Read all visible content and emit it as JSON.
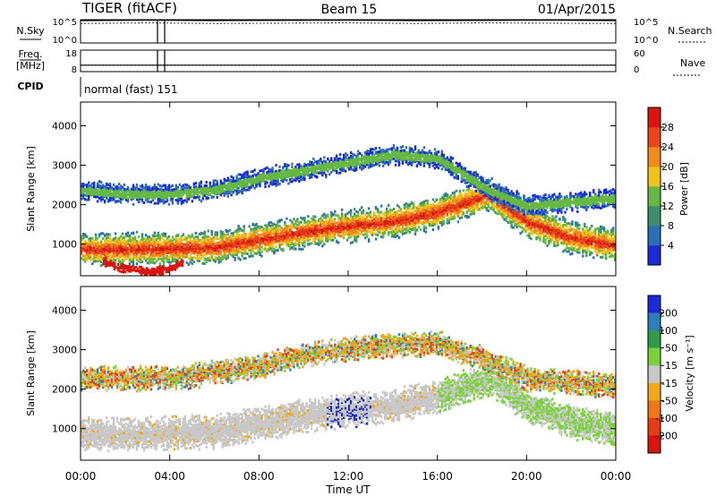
{
  "header": {
    "radar": "TIGER (fitACF)",
    "beam": "Beam 15",
    "date": "01/Apr/2015"
  },
  "chart_data": [
    {
      "type": "line",
      "panel": "noise",
      "left_label": "N.Sky",
      "right_label": "N.Search",
      "left_ticks": [
        "10^5",
        "10^0"
      ],
      "right_ticks": [
        "10^5",
        "10^0"
      ],
      "ylim_log10": [
        0,
        5
      ],
      "series": [
        {
          "name": "N.Sky",
          "values": [
            4.8,
            4.9,
            4.8,
            4.85,
            4.9,
            4.8,
            4.85,
            4.9,
            4.8
          ]
        },
        {
          "name": "N.Search",
          "values": [
            4.2,
            4.3,
            4.2,
            4.25,
            4.3,
            4.2,
            4.3,
            4.25,
            4.2
          ]
        }
      ]
    },
    {
      "type": "line",
      "panel": "frequency",
      "left_label_top": "Freq.",
      "left_label_bottom": "[MHz]",
      "right_label": "Nave",
      "left_ticks": [
        "18",
        "8"
      ],
      "right_ticks": [
        "60",
        "0"
      ],
      "ylim": [
        8,
        18
      ],
      "series": [
        {
          "name": "Freq.",
          "values": [
            11,
            11,
            11,
            11,
            11,
            11,
            11,
            11,
            11
          ]
        },
        {
          "name": "Nave",
          "values": [
            18,
            18,
            18,
            18,
            18,
            18,
            18,
            18,
            18
          ]
        }
      ]
    },
    {
      "type": "table",
      "panel": "cpid",
      "label": "CPID",
      "text": "normal (fast) 151"
    },
    {
      "type": "heatmap",
      "panel": "power",
      "ylabel": "Slant Range [km]",
      "yticks": [
        1000,
        2000,
        3000,
        4000
      ],
      "ylim": [
        200,
        4600
      ],
      "xlim_hours": [
        0,
        24
      ],
      "colorbar": {
        "label": "Power [dB]",
        "ticks": [
          "4",
          "8",
          "12",
          "16",
          "20",
          "24",
          "28"
        ],
        "colors": [
          "#1c2ad6",
          "#2a6fb5",
          "#3f8f6e",
          "#66b844",
          "#f2c21a",
          "#f08a1a",
          "#e8451a",
          "#d8160e"
        ]
      },
      "bands": [
        {
          "role": "main_echo",
          "t": [
            0,
            2,
            4,
            6,
            8,
            10,
            12,
            14,
            16,
            18.3,
            20,
            22,
            24
          ],
          "range": [
            900,
            900,
            920,
            950,
            1150,
            1350,
            1500,
            1600,
            1850,
            2300,
            1600,
            1200,
            1000
          ],
          "width": 420
        },
        {
          "role": "upper_echo",
          "t": [
            0,
            2,
            4,
            6,
            8,
            10,
            12,
            14,
            16,
            18.3,
            20,
            22,
            24
          ],
          "range": [
            2400,
            2300,
            2300,
            2400,
            2700,
            2900,
            3100,
            3300,
            3200,
            2400,
            2000,
            2100,
            2200
          ],
          "width": 250
        },
        {
          "role": "low_loop",
          "t": [
            1.0,
            1.7,
            2.4,
            3.2,
            4.0,
            4.6
          ],
          "range": [
            600,
            420,
            380,
            330,
            420,
            580
          ],
          "width": 80
        }
      ]
    },
    {
      "type": "heatmap",
      "panel": "velocity",
      "ylabel": "Slant Range [km]",
      "yticks": [
        1000,
        2000,
        3000,
        4000
      ],
      "ylim": [
        200,
        4600
      ],
      "xlim_hours": [
        0,
        24
      ],
      "xlabel": "Time UT",
      "xticks": [
        "00:00",
        "04:00",
        "08:00",
        "12:00",
        "16:00",
        "20:00",
        "00:00"
      ],
      "colorbar": {
        "label": "Velocity [m s⁻¹]",
        "ticks": [
          "200",
          "100",
          "50",
          "15",
          "-15",
          "-50",
          "-100",
          "-200"
        ],
        "colors": [
          "#1c2ad6",
          "#2c7fb8",
          "#2f9a4a",
          "#7ad13c",
          "#c8c8c8",
          "#f0a818",
          "#f07818",
          "#e83a14",
          "#d8160e"
        ]
      },
      "bands": [
        {
          "role": "main_echo_gray",
          "t": [
            0,
            2,
            4,
            6,
            8,
            10,
            12,
            14,
            16,
            18.3,
            20,
            22,
            24
          ],
          "range": [
            900,
            900,
            920,
            950,
            1150,
            1350,
            1500,
            1600,
            1850,
            2300,
            1600,
            1200,
            1000
          ],
          "width": 420
        },
        {
          "role": "mixed_scatter",
          "t": [
            0,
            4,
            8,
            10,
            13,
            16,
            18,
            20,
            24
          ],
          "range": [
            2300,
            2300,
            2600,
            2900,
            3100,
            3200,
            2800,
            2300,
            2100
          ],
          "width": 300
        }
      ]
    }
  ]
}
